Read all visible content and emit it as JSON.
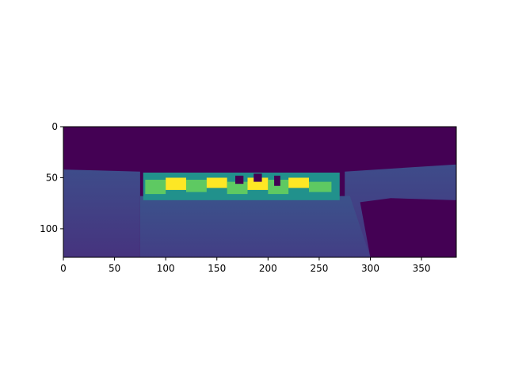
{
  "chart_data": {
    "type": "heatmap",
    "title": "",
    "xlabel": "",
    "ylabel": "",
    "image_size": [
      384,
      128
    ],
    "xlim": [
      0,
      384
    ],
    "ylim": [
      128,
      0
    ],
    "x_ticks": [
      0,
      50,
      100,
      150,
      200,
      250,
      300,
      350
    ],
    "y_ticks": [
      0,
      50,
      100
    ],
    "colormap": "viridis",
    "colors": {
      "low": "#440154",
      "mid": "#3b528b",
      "teal": "#21918c",
      "green": "#5ec962",
      "high": "#fde725"
    },
    "regions": [
      {
        "name": "sky",
        "x": [
          0,
          384
        ],
        "y": [
          0,
          42
        ],
        "value": 0.0
      },
      {
        "name": "left-wall",
        "x": [
          0,
          75
        ],
        "y": [
          42,
          128
        ],
        "value": 0.25
      },
      {
        "name": "ground",
        "x": [
          75,
          300
        ],
        "y": [
          70,
          128
        ],
        "value": 0.3
      },
      {
        "name": "center-far-band",
        "x": [
          78,
          262
        ],
        "y": [
          50,
          70
        ],
        "value": 0.85
      },
      {
        "name": "right-wall",
        "x": [
          280,
          384
        ],
        "y": [
          38,
          128
        ],
        "value": 0.25
      },
      {
        "name": "right-dark-object",
        "x": [
          300,
          384
        ],
        "y": [
          70,
          128
        ],
        "value": 0.0
      }
    ]
  },
  "axes": {
    "x_tick_labels": [
      "0",
      "50",
      "100",
      "150",
      "200",
      "250",
      "300",
      "350"
    ],
    "y_tick_labels": [
      "0",
      "50",
      "100"
    ]
  }
}
